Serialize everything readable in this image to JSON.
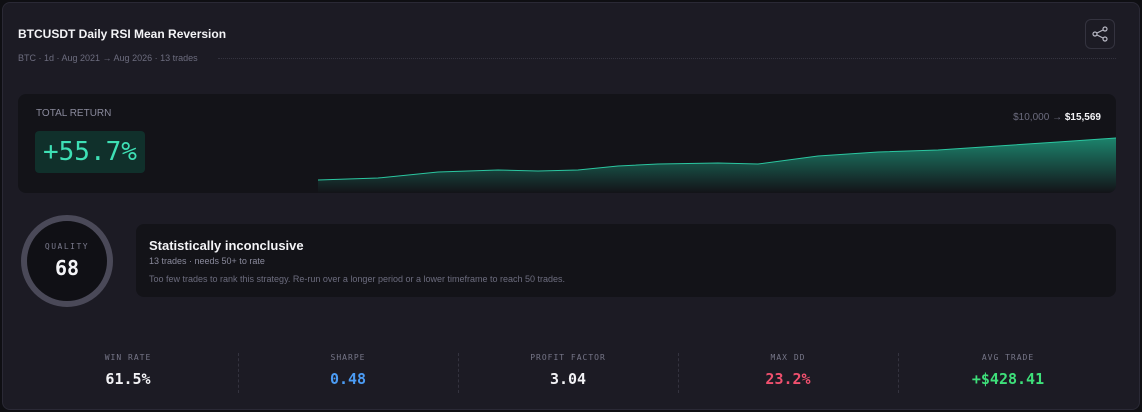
{
  "header": {
    "title": "BTCUSDT Daily RSI Mean Reversion",
    "subtitle": "BTC · 1d · Aug 2021 → Aug 2026 · 13 trades"
  },
  "total_return": {
    "label": "TOTAL RETURN",
    "value": "+55.7%",
    "start": "$10,000",
    "arrow": "→",
    "end": "$15,569"
  },
  "quality": {
    "label": "QUALITY",
    "score": "68"
  },
  "verdict": {
    "title": "Statistically inconclusive",
    "note": "13 trades · needs 50+ to rate",
    "description": "Too few trades to rank this strategy. Re-run over a longer period or a lower timeframe to reach 50 trades."
  },
  "stats": [
    {
      "label": "WIN RATE",
      "value": "61.5%",
      "color": "#f2f2f5"
    },
    {
      "label": "SHARPE",
      "value": "0.48",
      "color": "#4b9cf5"
    },
    {
      "label": "PROFIT FACTOR",
      "value": "3.04",
      "color": "#f2f2f5"
    },
    {
      "label": "MAX DD",
      "value": "23.2%",
      "color": "#f0506e"
    },
    {
      "label": "AVG TRADE",
      "value": "+$428.41",
      "color": "#3ee07a"
    }
  ]
}
